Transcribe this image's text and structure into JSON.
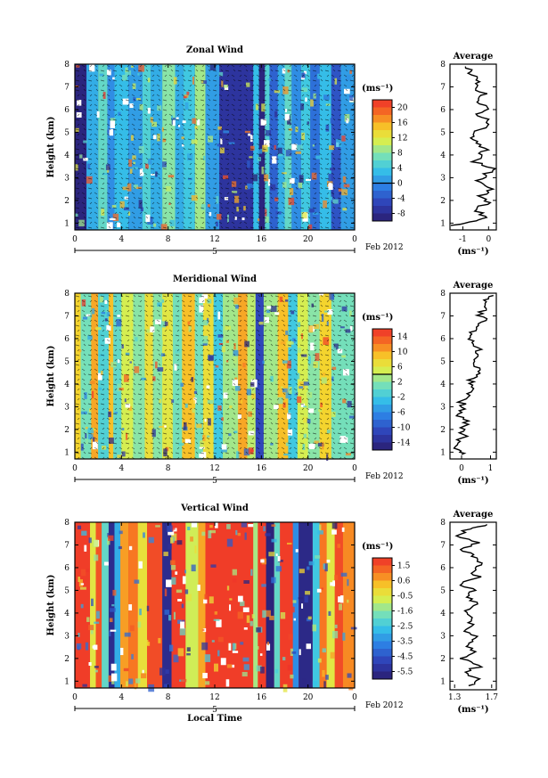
{
  "chart_data": [
    {
      "type": "heatmap",
      "title": "Zonal Wind",
      "ylabel": "Height (km)",
      "x_ticks": [
        "0",
        "4",
        "8",
        "12",
        "16",
        "20",
        "0"
      ],
      "xlim": [
        0,
        24
      ],
      "y_ticks": [
        "1",
        "2",
        "3",
        "4",
        "5",
        "6",
        "7",
        "8"
      ],
      "ylim": [
        0.7,
        8
      ],
      "date_label": "5",
      "month_label": "Feb 2012",
      "unit": "(ms⁻¹)",
      "colorbar_ticks": [
        "20",
        "16",
        "12",
        "8",
        "4",
        "0",
        "-4",
        "-8"
      ],
      "vmin": -10,
      "vmax": 22,
      "base_value": -7,
      "bands": [
        {
          "x0": 0.0,
          "x1": 1.0,
          "value": -9
        },
        {
          "x0": 1.0,
          "x1": 2.0,
          "value": 2
        },
        {
          "x0": 2.0,
          "x1": 2.8,
          "value": 6
        },
        {
          "x0": 2.8,
          "x1": 3.4,
          "value": 0
        },
        {
          "x0": 3.4,
          "x1": 4.6,
          "value": 3
        },
        {
          "x0": 4.6,
          "x1": 5.8,
          "value": 1
        },
        {
          "x0": 5.8,
          "x1": 6.5,
          "value": 5
        },
        {
          "x0": 6.5,
          "x1": 7.5,
          "value": 2
        },
        {
          "x0": 7.5,
          "x1": 8.6,
          "value": 8
        },
        {
          "x0": 8.6,
          "x1": 9.3,
          "value": 2
        },
        {
          "x0": 9.3,
          "x1": 10.3,
          "value": 4
        },
        {
          "x0": 10.3,
          "x1": 11.2,
          "value": 9
        },
        {
          "x0": 11.2,
          "x1": 12.4,
          "value": 1
        },
        {
          "x0": 12.4,
          "x1": 15.3,
          "value": -7
        },
        {
          "x0": 15.3,
          "x1": 15.8,
          "value": 3
        },
        {
          "x0": 15.8,
          "x1": 16.3,
          "value": -9
        },
        {
          "x0": 16.3,
          "x1": 16.7,
          "value": 5
        },
        {
          "x0": 16.7,
          "x1": 17.4,
          "value": -3
        },
        {
          "x0": 17.4,
          "x1": 18.0,
          "value": 2
        },
        {
          "x0": 18.0,
          "x1": 18.6,
          "value": 6
        },
        {
          "x0": 18.6,
          "x1": 19.4,
          "value": 0
        },
        {
          "x0": 19.4,
          "x1": 20.2,
          "value": 4
        },
        {
          "x0": 20.2,
          "x1": 21.0,
          "value": -2
        },
        {
          "x0": 21.0,
          "x1": 22.0,
          "value": 3
        },
        {
          "x0": 22.0,
          "x1": 22.8,
          "value": -4
        },
        {
          "x0": 22.8,
          "x1": 24.0,
          "value": 1
        }
      ],
      "average": {
        "title": "Average",
        "xlabel": "(ms⁻¹)",
        "x_ticks": [
          "-1",
          "0"
        ],
        "xlim": [
          -1.5,
          0.3
        ],
        "height": [
          0.9,
          1.1,
          1.3,
          1.6,
          1.9,
          2.2,
          2.5,
          2.8,
          3.1,
          3.4,
          3.7,
          4.0,
          4.3,
          4.6,
          4.9,
          5.2,
          5.5,
          5.8,
          6.1,
          6.4,
          6.7,
          7.0,
          7.3,
          7.6,
          7.9
        ],
        "value": [
          -1.4,
          -0.4,
          -0.1,
          -0.5,
          0.0,
          -0.3,
          0.1,
          -0.4,
          -0.2,
          0.2,
          -0.6,
          -0.3,
          -0.1,
          -0.5,
          -0.6,
          -0.2,
          0.0,
          -0.4,
          0.0,
          -0.5,
          -0.2,
          -0.6,
          -0.4,
          -0.7,
          -0.9
        ]
      }
    },
    {
      "type": "heatmap",
      "title": "Meridional Wind",
      "ylabel": "Height (km)",
      "x_ticks": [
        "0",
        "4",
        "8",
        "12",
        "16",
        "20",
        "0"
      ],
      "xlim": [
        0,
        24
      ],
      "y_ticks": [
        "1",
        "2",
        "3",
        "4",
        "5",
        "6",
        "7",
        "8"
      ],
      "ylim": [
        0.7,
        8
      ],
      "date_label": "5",
      "month_label": "Feb 2012",
      "unit": "(ms⁻¹)",
      "colorbar_ticks": [
        "14",
        "10",
        "6",
        "2",
        "-2",
        "-6",
        "-10",
        "-14"
      ],
      "vmin": -16,
      "vmax": 16,
      "base_value": 4,
      "bands": [
        {
          "x0": 0.0,
          "x1": 0.5,
          "value": 8
        },
        {
          "x0": 0.5,
          "x1": 1.4,
          "value": 1
        },
        {
          "x0": 1.4,
          "x1": 2.0,
          "value": 10
        },
        {
          "x0": 2.0,
          "x1": 2.9,
          "value": -1
        },
        {
          "x0": 2.9,
          "x1": 3.3,
          "value": 9
        },
        {
          "x0": 3.3,
          "x1": 4.0,
          "value": 0
        },
        {
          "x0": 4.0,
          "x1": 5.0,
          "value": 5
        },
        {
          "x0": 5.0,
          "x1": 6.0,
          "value": 2
        },
        {
          "x0": 6.0,
          "x1": 6.7,
          "value": 7
        },
        {
          "x0": 6.7,
          "x1": 7.5,
          "value": 2
        },
        {
          "x0": 7.5,
          "x1": 8.4,
          "value": 6
        },
        {
          "x0": 8.4,
          "x1": 9.2,
          "value": 1
        },
        {
          "x0": 9.2,
          "x1": 10.3,
          "value": 9
        },
        {
          "x0": 10.3,
          "x1": 11.0,
          "value": 1
        },
        {
          "x0": 11.0,
          "x1": 11.9,
          "value": 7
        },
        {
          "x0": 11.9,
          "x1": 12.7,
          "value": -2
        },
        {
          "x0": 12.7,
          "x1": 14.0,
          "value": 3
        },
        {
          "x0": 14.0,
          "x1": 14.8,
          "value": 10
        },
        {
          "x0": 14.8,
          "x1": 15.5,
          "value": 4
        },
        {
          "x0": 15.5,
          "x1": 16.2,
          "value": -11
        },
        {
          "x0": 16.2,
          "x1": 17.4,
          "value": 3
        },
        {
          "x0": 17.4,
          "x1": 18.3,
          "value": 9
        },
        {
          "x0": 18.3,
          "x1": 19.1,
          "value": -2
        },
        {
          "x0": 19.1,
          "x1": 20.0,
          "value": 5
        },
        {
          "x0": 20.0,
          "x1": 21.0,
          "value": 2
        },
        {
          "x0": 21.0,
          "x1": 22.0,
          "value": 8
        },
        {
          "x0": 22.0,
          "x1": 24.0,
          "value": 1
        }
      ],
      "average": {
        "title": "Average",
        "xlabel": "(ms⁻¹)",
        "x_ticks": [
          "0",
          "1"
        ],
        "xlim": [
          -0.4,
          1.2
        ],
        "height": [
          0.9,
          1.1,
          1.4,
          1.7,
          2.0,
          2.3,
          2.6,
          2.9,
          3.2,
          3.5,
          3.8,
          4.1,
          4.4,
          4.7,
          5.0,
          5.3,
          5.6,
          5.9,
          6.2,
          6.5,
          6.8,
          7.1,
          7.4,
          7.7,
          7.9
        ],
        "value": [
          0.0,
          -0.1,
          -0.2,
          0.1,
          0.0,
          0.2,
          -0.1,
          0.1,
          0.0,
          0.3,
          0.4,
          0.3,
          0.5,
          0.6,
          0.4,
          0.5,
          0.6,
          0.4,
          0.3,
          0.5,
          0.8,
          0.6,
          0.9,
          0.8,
          1.1
        ]
      }
    },
    {
      "type": "heatmap",
      "title": "Vertical Wind",
      "ylabel": "Height (km)",
      "xlabel": "Local Time",
      "x_ticks": [
        "0",
        "4",
        "8",
        "12",
        "16",
        "20",
        "0"
      ],
      "xlim": [
        0,
        24
      ],
      "y_ticks": [
        "1",
        "2",
        "3",
        "4",
        "5",
        "6",
        "7",
        "8"
      ],
      "ylim": [
        0.7,
        8
      ],
      "date_label": "5",
      "month_label": "Feb 2012",
      "unit": "(ms⁻¹)",
      "colorbar_ticks": [
        "1.5",
        "0.6",
        "-0.5",
        "-1.6",
        "-2.5",
        "-3.5",
        "-4.5",
        "-5.5"
      ],
      "vmin": -6,
      "vmax": 2,
      "base_value": 1.8,
      "bands": [
        {
          "x0": 0.0,
          "x1": 1.3,
          "value": 1.8
        },
        {
          "x0": 1.3,
          "x1": 1.8,
          "value": -0.5
        },
        {
          "x0": 1.8,
          "x1": 2.3,
          "value": 1.5
        },
        {
          "x0": 2.3,
          "x1": 2.9,
          "value": -2.0
        },
        {
          "x0": 2.9,
          "x1": 3.4,
          "value": -5.5
        },
        {
          "x0": 3.4,
          "x1": 3.9,
          "value": -3.0
        },
        {
          "x0": 3.9,
          "x1": 4.6,
          "value": 0.6
        },
        {
          "x0": 4.6,
          "x1": 5.4,
          "value": 1.0
        },
        {
          "x0": 5.4,
          "x1": 6.2,
          "value": -0.3
        },
        {
          "x0": 6.2,
          "x1": 7.5,
          "value": 1.6
        },
        {
          "x0": 7.5,
          "x1": 8.3,
          "value": -5.5
        },
        {
          "x0": 8.3,
          "x1": 9.5,
          "value": 1.8
        },
        {
          "x0": 9.5,
          "x1": 10.6,
          "value": -0.8
        },
        {
          "x0": 10.6,
          "x1": 11.2,
          "value": 0.5
        },
        {
          "x0": 11.2,
          "x1": 15.3,
          "value": 1.8
        },
        {
          "x0": 15.3,
          "x1": 15.7,
          "value": -1.2
        },
        {
          "x0": 15.7,
          "x1": 16.4,
          "value": 1.8
        },
        {
          "x0": 16.4,
          "x1": 17.1,
          "value": -5.8
        },
        {
          "x0": 17.1,
          "x1": 17.6,
          "value": -2.0
        },
        {
          "x0": 17.6,
          "x1": 18.7,
          "value": 1.8
        },
        {
          "x0": 18.7,
          "x1": 19.2,
          "value": -3.5
        },
        {
          "x0": 19.2,
          "x1": 20.4,
          "value": -5.6
        },
        {
          "x0": 20.4,
          "x1": 21.0,
          "value": -2.5
        },
        {
          "x0": 21.0,
          "x1": 21.6,
          "value": 1.0
        },
        {
          "x0": 21.6,
          "x1": 22.3,
          "value": -0.5
        },
        {
          "x0": 22.3,
          "x1": 23.0,
          "value": 1.6
        },
        {
          "x0": 23.0,
          "x1": 24.0,
          "value": 0.8
        }
      ],
      "average": {
        "title": "Average",
        "xlabel": "(ms⁻¹)",
        "x_ticks": [
          "1.3",
          "1.7"
        ],
        "xlim": [
          1.25,
          1.75
        ],
        "height": [
          0.8,
          1.1,
          1.4,
          1.7,
          2.0,
          2.3,
          2.6,
          2.9,
          3.2,
          3.5,
          3.8,
          4.1,
          4.4,
          4.7,
          5.0,
          5.3,
          5.6,
          5.9,
          6.2,
          6.5,
          6.8,
          7.1,
          7.4,
          7.7,
          7.9
        ],
        "value": [
          1.45,
          1.55,
          1.4,
          1.6,
          1.35,
          1.5,
          1.45,
          1.55,
          1.4,
          1.5,
          1.45,
          1.4,
          1.55,
          1.45,
          1.5,
          1.35,
          1.55,
          1.5,
          1.6,
          1.5,
          1.4,
          1.55,
          1.35,
          1.45,
          1.65
        ]
      }
    }
  ]
}
